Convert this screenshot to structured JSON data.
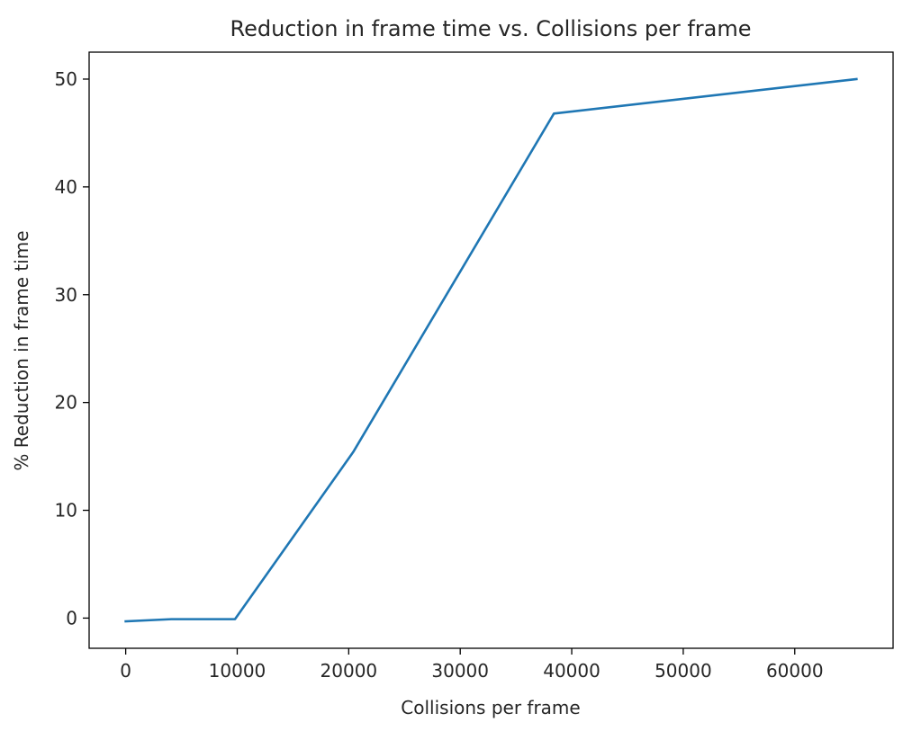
{
  "chart_data": {
    "type": "line",
    "title": "Reduction in frame time vs. Collisions per frame",
    "xlabel": "Collisions per frame",
    "ylabel": "% Reduction in frame time",
    "xlim": [
      -3280,
      68820
    ],
    "ylim": [
      -2.8,
      52.5
    ],
    "x_ticks": [
      0,
      10000,
      20000,
      30000,
      40000,
      50000,
      60000
    ],
    "y_ticks": [
      0,
      10,
      20,
      30,
      40,
      50
    ],
    "grid": false,
    "legend": "none",
    "series": [
      {
        "color": "#1f77b4",
        "x": [
          0,
          4096,
          9800,
          20400,
          38400,
          65536
        ],
        "y": [
          -0.3,
          -0.1,
          -0.1,
          15.4,
          46.8,
          50.0
        ]
      }
    ]
  }
}
